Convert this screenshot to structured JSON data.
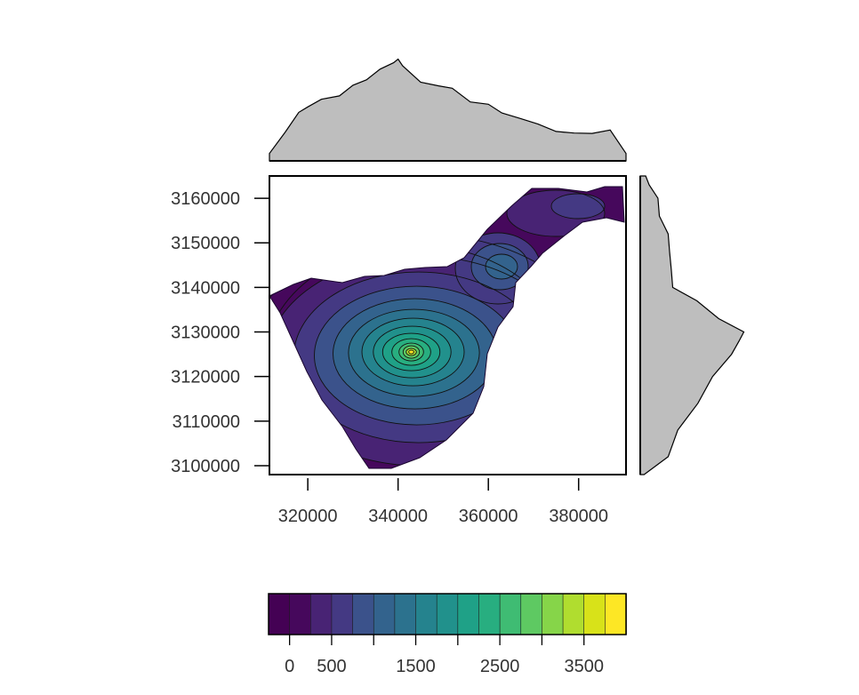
{
  "chart_data": {
    "type": "heatmap",
    "title": "",
    "xlabel": "",
    "ylabel": "",
    "xlim": [
      311500,
      390500
    ],
    "ylim": [
      3098000,
      3165000
    ],
    "x_ticks": [
      320000,
      340000,
      360000,
      380000
    ],
    "x_tick_labels": [
      "320000",
      "340000",
      "360000",
      "380000"
    ],
    "y_ticks": [
      3100000,
      3110000,
      3120000,
      3130000,
      3140000,
      3150000,
      3160000
    ],
    "y_tick_labels": [
      "3100000",
      "3110000",
      "3120000",
      "3130000",
      "3140000",
      "3150000",
      "3160000"
    ],
    "value_range": [
      0,
      3718
    ],
    "contour_interval": 250,
    "colormap": [
      "#440154",
      "#46085c",
      "#482374",
      "#443983",
      "#3b528b",
      "#33638d",
      "#2c728e",
      "#25838e",
      "#21918c",
      "#1fa187",
      "#28ae80",
      "#3fbc73",
      "#5ec962",
      "#86d549",
      "#b0dd2f",
      "#d8e219",
      "#fde725"
    ],
    "colorbar": {
      "breaks": [
        -250,
        0,
        250,
        500,
        750,
        1000,
        1250,
        1500,
        1750,
        2000,
        2250,
        2500,
        2750,
        3000,
        3250,
        3500,
        3750,
        4000
      ],
      "ticks": [
        0,
        500,
        1000,
        1500,
        2000,
        2500,
        3000,
        3500
      ],
      "labels": [
        "0",
        "500",
        "1500",
        "2500",
        "3500"
      ],
      "label_positions": [
        0,
        500,
        1500,
        2500,
        3500
      ]
    },
    "peak": {
      "x": 338000,
      "y": 3127500
    },
    "marginal_x_profile": {
      "x": [
        311500,
        315000,
        318000,
        320000,
        323000,
        327000,
        330000,
        333000,
        336000,
        339000,
        340000,
        341000,
        345000,
        349000,
        352000,
        356000,
        360000,
        363000,
        367000,
        371000,
        375000,
        379000,
        383000,
        387000,
        390500
      ],
      "value": [
        0.06,
        0.3,
        0.47,
        0.55,
        0.6,
        0.66,
        0.74,
        0.82,
        0.9,
        0.99,
        1.0,
        0.96,
        0.77,
        0.76,
        0.71,
        0.6,
        0.55,
        0.49,
        0.41,
        0.38,
        0.28,
        0.29,
        0.26,
        0.32,
        0.06
      ]
    },
    "marginal_y_profile": {
      "y": [
        3098000,
        3102000,
        3108000,
        3114000,
        3120000,
        3125000,
        3128000,
        3130000,
        3133000,
        3137000,
        3140000,
        3144000,
        3148000,
        3152000,
        3156000,
        3160000,
        3163000,
        3165000
      ],
      "value": [
        0.05,
        0.26,
        0.38,
        0.55,
        0.72,
        0.88,
        0.98,
        1.0,
        0.78,
        0.54,
        0.33,
        0.29,
        0.3,
        0.26,
        0.2,
        0.16,
        0.1,
        0.04
      ]
    },
    "grid": false,
    "legend": "bottom"
  }
}
